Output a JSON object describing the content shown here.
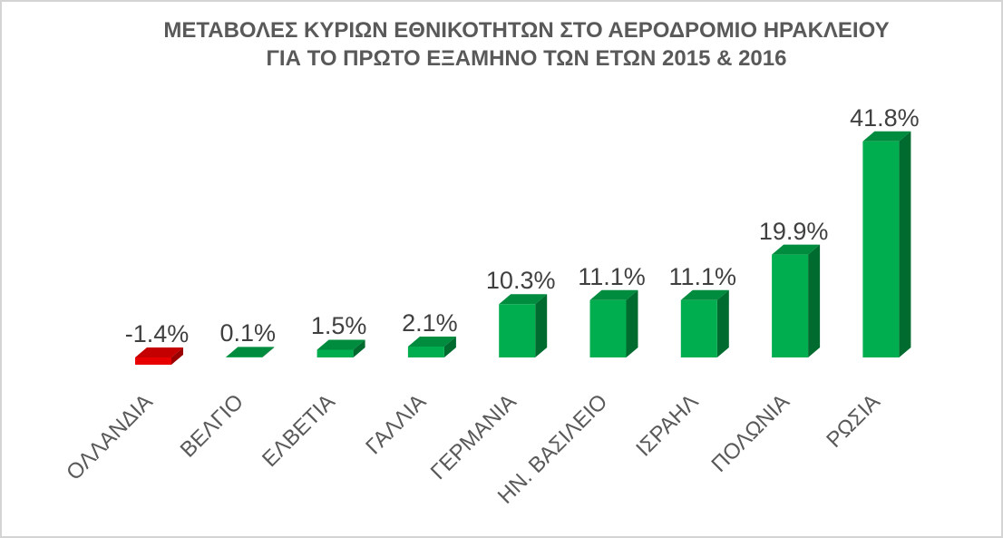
{
  "title": {
    "line1": "ΜΕΤΑΒΟΛΕΣ ΚΥΡΙΩΝ ΕΘΝΙΚΟΤΗΤΩΝ ΣΤΟ ΑΕΡΟΔΡΟΜΙΟ ΗΡΑΚΛΕΙΟΥ",
    "line2": "ΓΙΑ ΤΟ ΠΡΩΤΟ ΕΞΑΜΗΝΟ ΤΩΝ ΕΤΩΝ 2015 & 2016"
  },
  "chart_data": {
    "type": "bar",
    "style": "3d-box",
    "title": "ΜΕΤΑΒΟΛΕΣ ΚΥΡΙΩΝ ΕΘΝΙΚΟΤΗΤΩΝ ΣΤΟ ΑΕΡΟΔΡΟΜΙΟ ΗΡΑΚΛΕΙΟΥ ΓΙΑ ΤΟ ΠΡΩΤΟ ΕΞΑΜΗΝΟ ΤΩΝ ΕΤΩΝ 2015 & 2016",
    "categories": [
      "ΟΛΛΑΝΔΙΑ",
      "ΒΕΛΓΙΟ",
      "ΕΛΒΕΤΙΑ",
      "ΓΑΛΛΙΑ",
      "ΓΕΡΜΑΝΙΑ",
      "ΗΝ. ΒΑΣΙΛΕΙΟ",
      "ΙΣΡΑΗΛ",
      "ΠΟΛΩΝΙΑ",
      "ΡΩΣΙΑ"
    ],
    "values": [
      -1.4,
      0.1,
      1.5,
      2.1,
      10.3,
      11.1,
      11.1,
      19.9,
      41.8
    ],
    "data_labels": [
      "-1.4%",
      "0.1%",
      "1.5%",
      "2.1%",
      "10.3%",
      "11.1%",
      "11.1%",
      "19.9%",
      "41.8%"
    ],
    "xlabel": "",
    "ylabel": "",
    "ylim": [
      -2,
      45
    ],
    "grid": false,
    "legend": false,
    "axes_visible": false,
    "colors": {
      "positive": {
        "front": "#00AE4F",
        "top": "#008C3E",
        "side": "#006B2F"
      },
      "negative": {
        "front": "#E80000",
        "top": "#C40000",
        "side": "#9B0000"
      }
    },
    "data_label_color": "#404040",
    "category_label_color": "#595959",
    "title_color": "#595959"
  }
}
